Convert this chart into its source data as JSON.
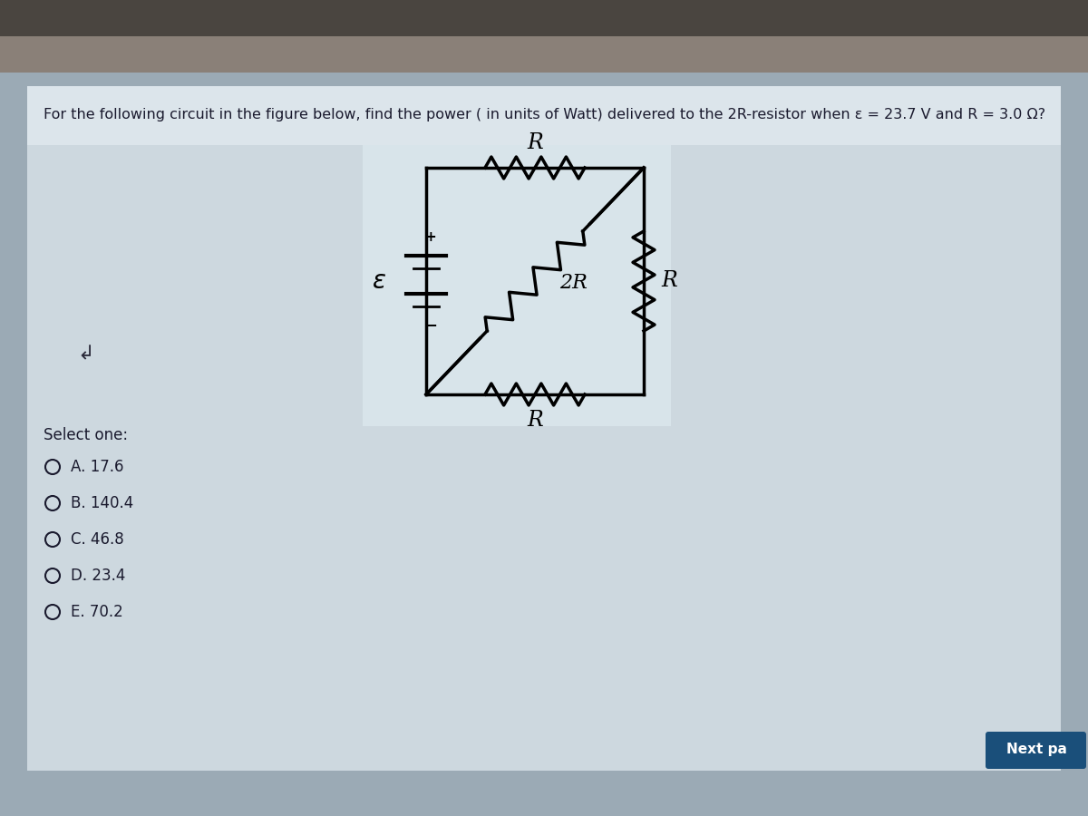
{
  "question_text": "For the following circuit in the figure below, find the power ( in units of Watt) delivered to the 2R-resistor when ε = 23.7 V and R = 3.0 Ω?",
  "select_one_text": "Select one:",
  "opt_labels": [
    "A. 17.6",
    "B. 140.4",
    "C. 46.8",
    "D. 23.4",
    "E. 70.2"
  ],
  "next_button_text": "Next pa",
  "bg_outer": "#9baab5",
  "bg_inner": "#b8c8d4",
  "bg_panel": "#c8d5dc",
  "circuit_bg": "#d4dfe6",
  "text_color": "#1a1a2e",
  "circuit_line_color": "#000000",
  "next_btn_color": "#1a4f7a",
  "title_fontsize": 11.5,
  "option_fontsize": 12,
  "select_fontsize": 12
}
